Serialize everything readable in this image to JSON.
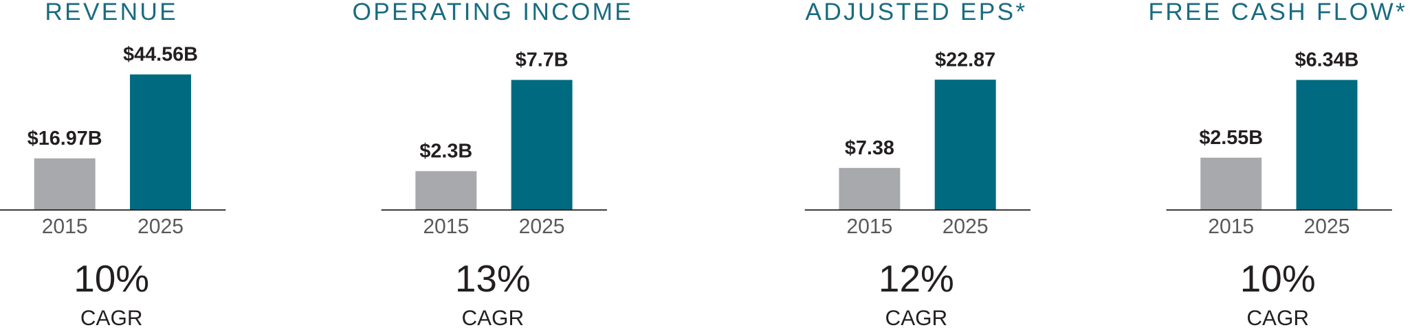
{
  "chart_data": [
    {
      "type": "bar",
      "title": "REVENUE",
      "categories": [
        "2015",
        "2025"
      ],
      "values": [
        16.97,
        44.56
      ],
      "value_labels": [
        "$16.97B",
        "$44.56B"
      ],
      "colors": [
        "#a7a9ac",
        "#006a80"
      ],
      "ylim": [
        0,
        47.2
      ],
      "annotation": "10%",
      "annotation_label": "CAGR"
    },
    {
      "type": "bar",
      "title": "OPERATING INCOME",
      "categories": [
        "2015",
        "2025"
      ],
      "values": [
        2.3,
        7.7
      ],
      "value_labels": [
        "$2.3B",
        "$7.7B"
      ],
      "colors": [
        "#a7a9ac",
        "#006a80"
      ],
      "ylim": [
        0,
        8.5
      ],
      "annotation": "13%",
      "annotation_label": "CAGR"
    },
    {
      "type": "bar",
      "title": "ADJUSTED EPS*",
      "categories": [
        "2015",
        "2025"
      ],
      "values": [
        7.38,
        22.87
      ],
      "value_labels": [
        "$7.38",
        "$22.87"
      ],
      "colors": [
        "#a7a9ac",
        "#006a80"
      ],
      "ylim": [
        0,
        25.2
      ],
      "annotation": "12%",
      "annotation_label": "CAGR"
    },
    {
      "type": "bar",
      "title": "FREE CASH FLOW*",
      "categories": [
        "2015",
        "2025"
      ],
      "values": [
        2.55,
        6.34
      ],
      "value_labels": [
        "$2.55B",
        "$6.34B"
      ],
      "colors": [
        "#a7a9ac",
        "#006a80"
      ],
      "ylim": [
        0,
        7.0
      ],
      "annotation": "10%",
      "annotation_label": "CAGR"
    }
  ]
}
